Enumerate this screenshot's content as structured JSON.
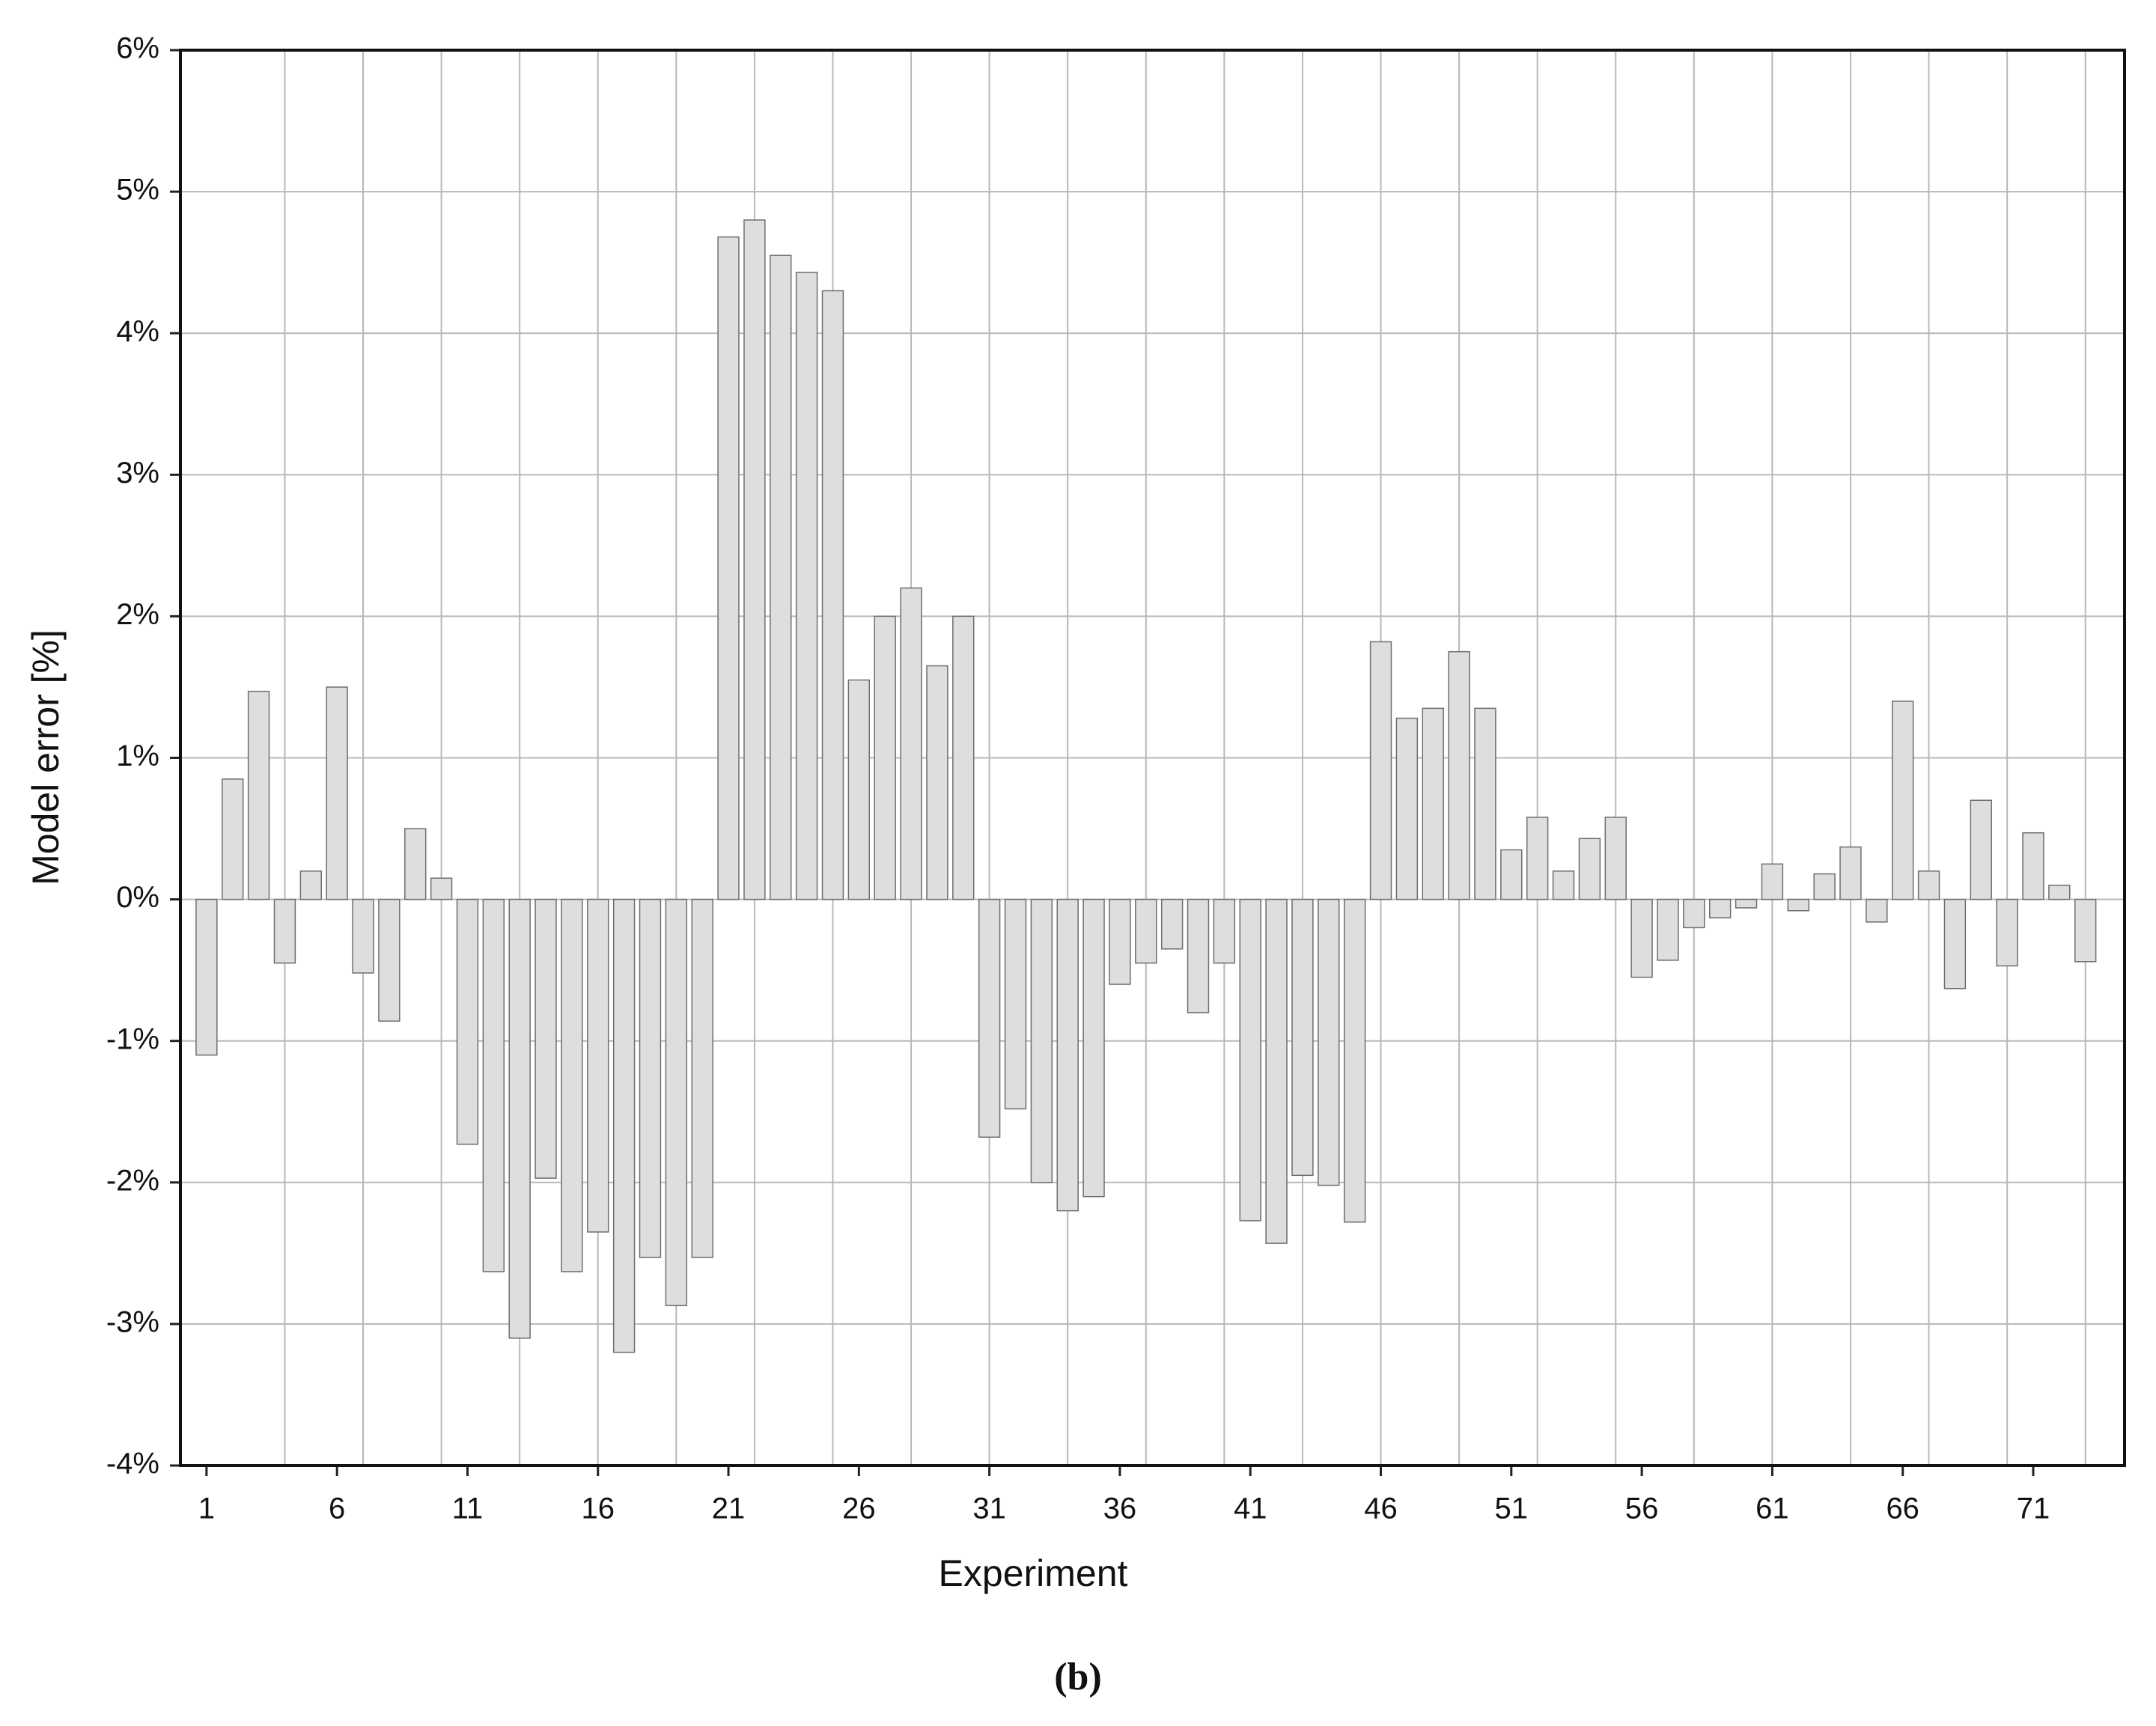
{
  "chart_data": {
    "type": "bar",
    "y_label": "Model error [%]",
    "x_label": "Experiment",
    "caption": "(b)",
    "color": "#dedede",
    "edge_color": "#6e6e6e",
    "grid": true,
    "x": [
      1,
      2,
      3,
      4,
      5,
      6,
      7,
      8,
      9,
      10,
      11,
      12,
      13,
      14,
      15,
      16,
      17,
      18,
      19,
      20,
      21,
      22,
      23,
      24,
      25,
      26,
      27,
      28,
      29,
      30,
      31,
      32,
      33,
      34,
      35,
      36,
      37,
      38,
      39,
      40,
      41,
      42,
      43,
      44,
      45,
      46,
      47,
      48,
      49,
      50,
      51,
      52,
      53,
      54,
      55,
      56,
      57,
      58,
      59,
      60,
      61,
      62,
      63,
      64,
      65,
      66,
      67,
      68,
      69,
      70,
      71,
      72,
      73
    ],
    "values": [
      -1.1,
      0.85,
      1.47,
      -0.45,
      0.2,
      1.5,
      -0.52,
      -0.86,
      0.5,
      0.15,
      -1.73,
      -2.63,
      -3.1,
      -1.97,
      -2.63,
      -2.35,
      -3.2,
      -2.53,
      -2.87,
      -2.53,
      4.68,
      4.8,
      4.55,
      4.43,
      4.3,
      1.55,
      2.0,
      2.2,
      1.65,
      2.0,
      -1.68,
      -1.48,
      -2.0,
      -2.2,
      -2.1,
      -0.6,
      -0.45,
      -0.35,
      -0.8,
      -0.45,
      -2.27,
      -2.43,
      -1.95,
      -2.02,
      -2.28,
      1.82,
      1.28,
      1.35,
      1.75,
      1.35,
      0.35,
      0.58,
      0.2,
      0.43,
      0.58,
      -0.55,
      -0.43,
      -0.2,
      -0.13,
      -0.06,
      0.25,
      -0.08,
      0.18,
      0.37,
      -0.16,
      1.4,
      0.2,
      -0.63,
      0.7,
      -0.47,
      0.47,
      0.1,
      -0.44
    ],
    "xlim": [
      0,
      74.5
    ],
    "xticks": [
      1,
      6,
      11,
      16,
      21,
      26,
      31,
      36,
      41,
      46,
      51,
      56,
      61,
      66,
      71
    ],
    "x_grid": [
      4,
      7,
      10,
      13,
      16,
      19,
      22,
      25,
      28,
      31,
      34,
      37,
      40,
      43,
      46,
      49,
      52,
      55,
      58,
      61,
      64,
      67,
      70,
      73
    ],
    "ylim": [
      -4,
      6
    ],
    "yticks": [
      {
        "value": -4,
        "label": "-4%"
      },
      {
        "value": -3,
        "label": "-3%"
      },
      {
        "value": -2,
        "label": "-2%"
      },
      {
        "value": -1,
        "label": "-1%"
      },
      {
        "value": 0,
        "label": "0%"
      },
      {
        "value": 1,
        "label": "1%"
      },
      {
        "value": 2,
        "label": "2%"
      },
      {
        "value": 3,
        "label": "3%"
      },
      {
        "value": 4,
        "label": "4%"
      },
      {
        "value": 5,
        "label": "5%"
      },
      {
        "value": 6,
        "label": "6%"
      }
    ]
  }
}
